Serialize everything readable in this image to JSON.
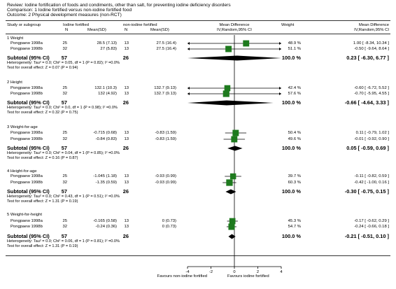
{
  "review": {
    "review_line": "Review:  Iodine fortification of foods and condiments, other than salt, for preventing iodine deficiency disorders",
    "comparison_line": "Comparison:  1 Iodine fortified versus non-iodine fortified food",
    "outcome_line": "Outcome:  2 Physical development measures (non-RCT)"
  },
  "columns": {
    "study": "Study or subgroup",
    "group1": "Iodine fortified",
    "group1_n": "N",
    "group1_mean": "Mean(SD)",
    "group2": "non-iodine fortified",
    "group2_n": "N",
    "group2_mean": "Mean(SD)",
    "effect_title": "Mean Difference",
    "effect_method": "IV,Random,95% CI",
    "weight": "Weight",
    "effect_title2": "Mean Difference",
    "effect_method2": "IV,Random,95% CI"
  },
  "subgroups": [
    {
      "title": "1 Weight",
      "studies": [
        {
          "name": "Pongpaew 1998a",
          "n1": "25",
          "ms1": "28.5 (7.13)",
          "n2": "13",
          "ms2": "27.5 (16.4)",
          "weight": "48.9 %",
          "ci_text": "1.00 [ -8.34, 10.34 ]",
          "md": 1.0,
          "lo": -8.34,
          "hi": 10.34,
          "w": 48.9
        },
        {
          "name": "Pongpaew 1998b",
          "n1": "32",
          "ms1": "27 (5.83)",
          "n2": "13",
          "ms2": "27.5 (16.4)",
          "weight": "51.1 %",
          "ci_text": "-0.50 [ -9.64, 8.64 ]",
          "md": -0.5,
          "lo": -9.64,
          "hi": 8.64,
          "w": 51.1
        }
      ],
      "subtotal": {
        "label": "Subtotal (95% CI)",
        "n1": "57",
        "n2": "26",
        "weight": "100.0 %",
        "ci_text": "0.23 [ -6.30, 6.77 ]",
        "md": 0.23,
        "lo": -6.3,
        "hi": 6.77
      },
      "heterogeneity": "Heterogeneity: Tau² = 0.0; Chi² = 0.05, df = 1 (P = 0.82); I² =0.0%",
      "overall": "Test for overall effect: Z = 0.07 (P = 0.94)"
    },
    {
      "title": "2 Height",
      "studies": [
        {
          "name": "Pongpaew 1998a",
          "n1": "25",
          "ms1": "132.1 (10.3)",
          "n2": "13",
          "ms2": "132.7 (9.13)",
          "weight": "42.4 %",
          "ci_text": "-0.60 [ -6.72, 5.52 ]",
          "md": -0.6,
          "lo": -6.72,
          "hi": 5.52,
          "w": 42.4
        },
        {
          "name": "Pongpaew 1998b",
          "n1": "32",
          "ms1": "132 (4.92)",
          "n2": "13",
          "ms2": "132.7 (9.13)",
          "weight": "57.6 %",
          "ci_text": "-0.70 [ -5.95, 4.55 ]",
          "md": -0.7,
          "lo": -5.95,
          "hi": 4.55,
          "w": 57.6
        }
      ],
      "subtotal": {
        "label": "Subtotal (95% CI)",
        "n1": "57",
        "n2": "26",
        "weight": "100.0 %",
        "ci_text": "-0.66 [ -4.64, 3.33 ]",
        "md": -0.66,
        "lo": -4.64,
        "hi": 3.33
      },
      "heterogeneity": "Heterogeneity: Tau² = 0.0; Chi² = 0.0, df = 1 (P = 0.98); I² =0.0%",
      "overall": "Test for overall effect: Z = 0.32 (P = 0.75)"
    },
    {
      "title": "3 Weight-for-age",
      "studies": [
        {
          "name": "Pongpaew 1998a",
          "n1": "25",
          "ms1": "-0.715 (0.68)",
          "n2": "13",
          "ms2": "-0.83 (1.59)",
          "weight": "50.4 %",
          "ci_text": "0.11 [ -0.79, 1.02 ]",
          "md": 0.11,
          "lo": -0.79,
          "hi": 1.02,
          "w": 50.4
        },
        {
          "name": "Pongpaew 1998b",
          "n1": "32",
          "ms1": "-0.84 (0.83)",
          "n2": "13",
          "ms2": "-0.83 (1.59)",
          "weight": "49.6 %",
          "ci_text": "-0.01 [ -0.92, 0.90 ]",
          "md": -0.01,
          "lo": -0.92,
          "hi": 0.9,
          "w": 49.6
        }
      ],
      "subtotal": {
        "label": "Subtotal (95% CI)",
        "n1": "57",
        "n2": "26",
        "weight": "100.0 %",
        "ci_text": "0.05 [ -0.59, 0.69 ]",
        "md": 0.05,
        "lo": -0.59,
        "hi": 0.69
      },
      "heterogeneity": "Heterogeneity: Tau² = 0.0; Chi² = 0.04, df = 1 (P = 0.85); I² =0.0%",
      "overall": "Test for overall effect: Z = 0.16 (P = 0.87)"
    },
    {
      "title": "4 Height-for-age",
      "studies": [
        {
          "name": "Pongpaew 1998a",
          "n1": "25",
          "ms1": "-1.045 (1.18)",
          "n2": "13",
          "ms2": "-0.93 (0.99)",
          "weight": "39.7 %",
          "ci_text": "-0.11 [ -0.82, 0.59 ]",
          "md": -0.11,
          "lo": -0.82,
          "hi": 0.59,
          "w": 39.7
        },
        {
          "name": "Pongpaew 1998b",
          "n1": "32",
          "ms1": "-1.35 (0.59)",
          "n2": "13",
          "ms2": "-0.93 (0.99)",
          "weight": "60.3 %",
          "ci_text": "-0.42 [ -1.00, 0.16 ]",
          "md": -0.42,
          "lo": -1.0,
          "hi": 0.16,
          "w": 60.3
        }
      ],
      "subtotal": {
        "label": "Subtotal (95% CI)",
        "n1": "57",
        "n2": "26",
        "weight": "100.0 %",
        "ci_text": "-0.30 [ -0.75, 0.15 ]",
        "md": -0.3,
        "lo": -0.75,
        "hi": 0.15
      },
      "heterogeneity": "Heterogeneity: Tau² = 0.0; Chi² = 0.43, df = 1 (P = 0.51); I² =0.0%",
      "overall": "Test for overall effect: Z = 1.31 (P = 0.19)"
    },
    {
      "title": "5 Weight-for-height",
      "studies": [
        {
          "name": "Pongpaew 1998a",
          "n1": "25",
          "ms1": "-0.165 (0.58)",
          "n2": "13",
          "ms2": "0 (0.73)",
          "weight": "45.3 %",
          "ci_text": "-0.17 [ -0.62, 0.29 ]",
          "md": -0.17,
          "lo": -0.62,
          "hi": 0.29,
          "w": 45.3
        },
        {
          "name": "Pongpaew 1998b",
          "n1": "32",
          "ms1": "-0.24 (0.36)",
          "n2": "13",
          "ms2": "0 (0.73)",
          "weight": "54.7 %",
          "ci_text": "-0.24 [ -0.66, 0.18 ]",
          "md": -0.24,
          "lo": -0.66,
          "hi": 0.18,
          "w": 54.7
        }
      ],
      "subtotal": {
        "label": "Subtotal (95% CI)",
        "n1": "57",
        "n2": "26",
        "weight": "100.0 %",
        "ci_text": "-0.21 [ -0.51, 0.10 ]",
        "md": -0.21,
        "lo": -0.51,
        "hi": 0.1
      },
      "heterogeneity": "Heterogeneity: Tau² = 0.0; Chi² = 0.06, df = 1 (P = 0.81); I² =0.0%",
      "overall": "Test for overall effect: Z = 1.31 (P = 0.19)"
    }
  ],
  "footer": {
    "favours_left": "Favours non-iodine fortified",
    "favours_right": "Favours iodine fortified"
  },
  "chart_data": {
    "type": "forest",
    "xlim": [
      -4,
      4
    ],
    "ticks": [
      -4,
      -2,
      0,
      2,
      4
    ],
    "tick_labels": [
      "-4",
      "-2",
      "0",
      "2",
      "4"
    ],
    "study_marker_color": "#1e7a1e",
    "pooled_marker_color": "#000000"
  }
}
